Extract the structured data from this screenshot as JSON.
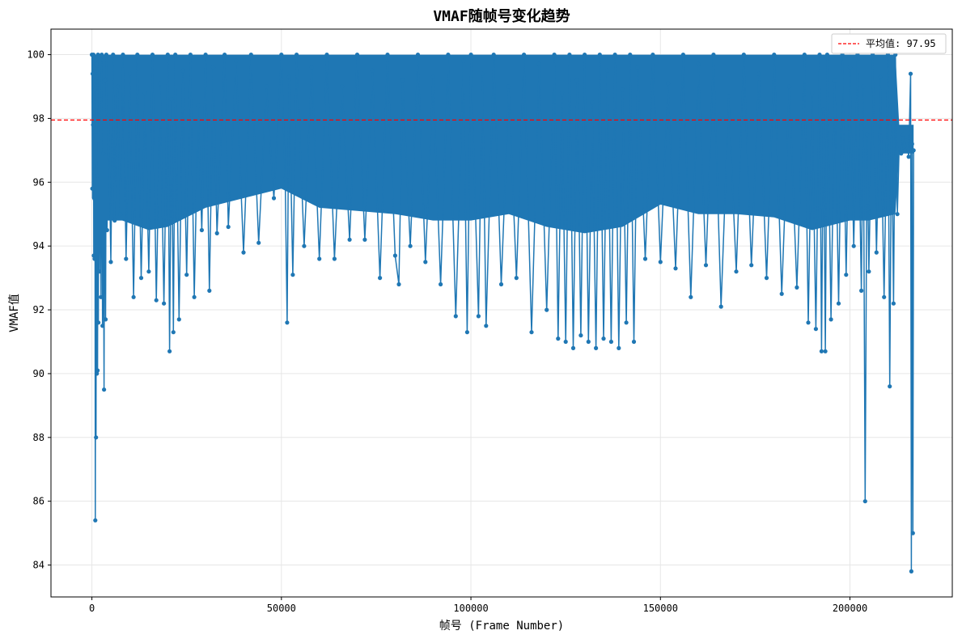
{
  "chart_data": {
    "type": "line",
    "title": "VMAF随帧号变化趋势",
    "xlabel": "帧号 (Frame Number)",
    "ylabel": "VMAF值",
    "xlim": [
      -10800,
      227000
    ],
    "ylim": [
      83.0,
      100.8
    ],
    "xticks": [
      0,
      50000,
      100000,
      150000,
      200000
    ],
    "yticks": [
      84,
      86,
      88,
      90,
      92,
      94,
      96,
      98,
      100
    ],
    "grid": true,
    "legend_position": "top-right",
    "mean_line": {
      "value": 97.95,
      "label": "平均值: 97.95",
      "color": "#ff0000",
      "style": "dashed"
    },
    "series": [
      {
        "color": "#1f77b4",
        "marker": "circle",
        "points": [
          [
            0,
            100
          ],
          [
            100,
            95.8
          ],
          [
            200,
            99.4
          ],
          [
            300,
            97.8
          ],
          [
            400,
            100
          ],
          [
            500,
            93.7
          ],
          [
            600,
            96.5
          ],
          [
            700,
            93.6
          ],
          [
            800,
            98.9
          ],
          [
            900,
            85.4
          ],
          [
            1000,
            97.6
          ],
          [
            1100,
            88.0
          ],
          [
            1200,
            99.7
          ],
          [
            1300,
            90.0
          ],
          [
            1400,
            96.2
          ],
          [
            1500,
            90.1
          ],
          [
            1600,
            100
          ],
          [
            1700,
            91.6
          ],
          [
            1800,
            97.3
          ],
          [
            2000,
            93.2
          ],
          [
            2200,
            98.6
          ],
          [
            2400,
            92.4
          ],
          [
            2600,
            100
          ],
          [
            2800,
            91.5
          ],
          [
            3000,
            96.9
          ],
          [
            3200,
            89.5
          ],
          [
            3400,
            99.2
          ],
          [
            3600,
            91.7
          ],
          [
            3800,
            100
          ],
          [
            4000,
            94.5
          ],
          [
            4400,
            98.1
          ],
          [
            5000,
            93.5
          ],
          [
            5600,
            100
          ],
          [
            6000,
            94.8
          ],
          [
            6800,
            99.0
          ],
          [
            7500,
            95.0
          ],
          [
            8200,
            100
          ],
          [
            9000,
            93.6
          ],
          [
            10000,
            99.4
          ],
          [
            11000,
            92.4
          ],
          [
            12000,
            100
          ],
          [
            13000,
            93.0
          ],
          [
            14000,
            98.8
          ],
          [
            15000,
            93.2
          ],
          [
            16000,
            100
          ],
          [
            17000,
            92.3
          ],
          [
            18000,
            99.1
          ],
          [
            19000,
            92.2
          ],
          [
            20000,
            100
          ],
          [
            20500,
            90.7
          ],
          [
            21000,
            98.6
          ],
          [
            21500,
            91.3
          ],
          [
            22000,
            100
          ],
          [
            23000,
            91.7
          ],
          [
            24000,
            99.5
          ],
          [
            25000,
            93.1
          ],
          [
            26000,
            100
          ],
          [
            27000,
            92.4
          ],
          [
            28000,
            98.4
          ],
          [
            29000,
            94.5
          ],
          [
            30000,
            100
          ],
          [
            31000,
            92.6
          ],
          [
            32000,
            99.6
          ],
          [
            33000,
            94.4
          ],
          [
            35000,
            100
          ],
          [
            36000,
            94.6
          ],
          [
            38000,
            99.8
          ],
          [
            40000,
            93.8
          ],
          [
            42000,
            100
          ],
          [
            44000,
            94.1
          ],
          [
            46000,
            99.0
          ],
          [
            48000,
            95.5
          ],
          [
            50000,
            100
          ],
          [
            51000,
            96.1
          ],
          [
            51500,
            91.6
          ],
          [
            52000,
            99.3
          ],
          [
            53000,
            93.1
          ],
          [
            54000,
            100
          ],
          [
            56000,
            94.0
          ],
          [
            58000,
            99.6
          ],
          [
            60000,
            93.6
          ],
          [
            62000,
            100
          ],
          [
            64000,
            93.6
          ],
          [
            66000,
            99.0
          ],
          [
            68000,
            94.2
          ],
          [
            70000,
            100
          ],
          [
            72000,
            94.2
          ],
          [
            74000,
            99.5
          ],
          [
            76000,
            93.0
          ],
          [
            78000,
            100
          ],
          [
            80000,
            93.7
          ],
          [
            81000,
            92.8
          ],
          [
            82000,
            99.2
          ],
          [
            84000,
            94.0
          ],
          [
            86000,
            100
          ],
          [
            88000,
            93.5
          ],
          [
            90000,
            99.3
          ],
          [
            92000,
            92.8
          ],
          [
            94000,
            100
          ],
          [
            96000,
            91.8
          ],
          [
            98000,
            99.8
          ],
          [
            99000,
            91.3
          ],
          [
            100000,
            100
          ],
          [
            102000,
            91.8
          ],
          [
            103000,
            99.4
          ],
          [
            104000,
            91.5
          ],
          [
            106000,
            100
          ],
          [
            108000,
            92.8
          ],
          [
            110000,
            99.0
          ],
          [
            112000,
            93.0
          ],
          [
            114000,
            100
          ],
          [
            116000,
            91.3
          ],
          [
            118000,
            99.7
          ],
          [
            120000,
            92.0
          ],
          [
            122000,
            100
          ],
          [
            123000,
            91.1
          ],
          [
            124000,
            98.8
          ],
          [
            125000,
            91.0
          ],
          [
            126000,
            100
          ],
          [
            127000,
            90.8
          ],
          [
            128000,
            99.2
          ],
          [
            129000,
            91.2
          ],
          [
            130000,
            100
          ],
          [
            131000,
            91.0
          ],
          [
            132000,
            98.5
          ],
          [
            133000,
            90.8
          ],
          [
            134000,
            100
          ],
          [
            135000,
            91.1
          ],
          [
            136000,
            99.5
          ],
          [
            137000,
            91.0
          ],
          [
            138000,
            100
          ],
          [
            139000,
            90.8
          ],
          [
            140000,
            98.9
          ],
          [
            141000,
            91.6
          ],
          [
            142000,
            100
          ],
          [
            143000,
            91.0
          ],
          [
            144000,
            99.6
          ],
          [
            146000,
            93.6
          ],
          [
            148000,
            100
          ],
          [
            150000,
            93.5
          ],
          [
            152000,
            99.1
          ],
          [
            154000,
            93.3
          ],
          [
            156000,
            100
          ],
          [
            158000,
            92.4
          ],
          [
            160000,
            99.7
          ],
          [
            162000,
            93.4
          ],
          [
            164000,
            100
          ],
          [
            166000,
            92.1
          ],
          [
            168000,
            98.7
          ],
          [
            170000,
            93.2
          ],
          [
            172000,
            100
          ],
          [
            174000,
            93.4
          ],
          [
            176000,
            99.4
          ],
          [
            178000,
            93.0
          ],
          [
            180000,
            100
          ],
          [
            182000,
            92.5
          ],
          [
            184000,
            99.0
          ],
          [
            186000,
            92.7
          ],
          [
            188000,
            100
          ],
          [
            189000,
            91.6
          ],
          [
            190000,
            98.8
          ],
          [
            191000,
            91.4
          ],
          [
            192000,
            100
          ],
          [
            192500,
            90.7
          ],
          [
            193000,
            98.3
          ],
          [
            193500,
            90.7
          ],
          [
            194000,
            100
          ],
          [
            195000,
            91.7
          ],
          [
            196000,
            99.2
          ],
          [
            197000,
            92.2
          ],
          [
            198000,
            100
          ],
          [
            199000,
            93.1
          ],
          [
            200000,
            99.6
          ],
          [
            201000,
            94.0
          ],
          [
            202000,
            100
          ],
          [
            203000,
            92.6
          ],
          [
            203500,
            99.0
          ],
          [
            204000,
            86.0
          ],
          [
            204500,
            97.5
          ],
          [
            205000,
            93.2
          ],
          [
            206000,
            100
          ],
          [
            207000,
            93.8
          ],
          [
            208000,
            99.3
          ],
          [
            209000,
            92.4
          ],
          [
            210000,
            100
          ],
          [
            210500,
            89.6
          ],
          [
            211000,
            98.4
          ],
          [
            211500,
            92.2
          ],
          [
            212000,
            100
          ],
          [
            212500,
            95.0
          ],
          [
            213000,
            97.2
          ],
          [
            213500,
            96.9
          ],
          [
            214000,
            97.5
          ],
          [
            214500,
            97.0
          ],
          [
            215000,
            97.3
          ],
          [
            215500,
            96.8
          ],
          [
            216000,
            99.4
          ],
          [
            216200,
            83.8
          ],
          [
            216400,
            97.2
          ],
          [
            216600,
            85.0
          ],
          [
            216800,
            97.0
          ]
        ]
      }
    ],
    "density_band": [
      [
        0,
        95.5,
        100
      ],
      [
        3000,
        94.8,
        100
      ],
      [
        8000,
        94.8,
        100
      ],
      [
        15000,
        94.5,
        100
      ],
      [
        20000,
        94.6,
        100
      ],
      [
        30000,
        95.2,
        100
      ],
      [
        40000,
        95.5,
        100
      ],
      [
        50000,
        95.8,
        100
      ],
      [
        60000,
        95.2,
        100
      ],
      [
        70000,
        95.1,
        100
      ],
      [
        80000,
        95.0,
        100
      ],
      [
        90000,
        94.8,
        100
      ],
      [
        100000,
        94.8,
        100
      ],
      [
        110000,
        95.0,
        100
      ],
      [
        120000,
        94.6,
        100
      ],
      [
        130000,
        94.4,
        100
      ],
      [
        140000,
        94.6,
        100
      ],
      [
        150000,
        95.3,
        100
      ],
      [
        160000,
        95.0,
        100
      ],
      [
        170000,
        95.0,
        100
      ],
      [
        180000,
        94.9,
        100
      ],
      [
        190000,
        94.5,
        100
      ],
      [
        200000,
        94.8,
        100
      ],
      [
        205000,
        94.8,
        100
      ],
      [
        212000,
        95.0,
        100
      ],
      [
        213000,
        96.9,
        97.8
      ],
      [
        216800,
        96.9,
        97.8
      ]
    ]
  }
}
